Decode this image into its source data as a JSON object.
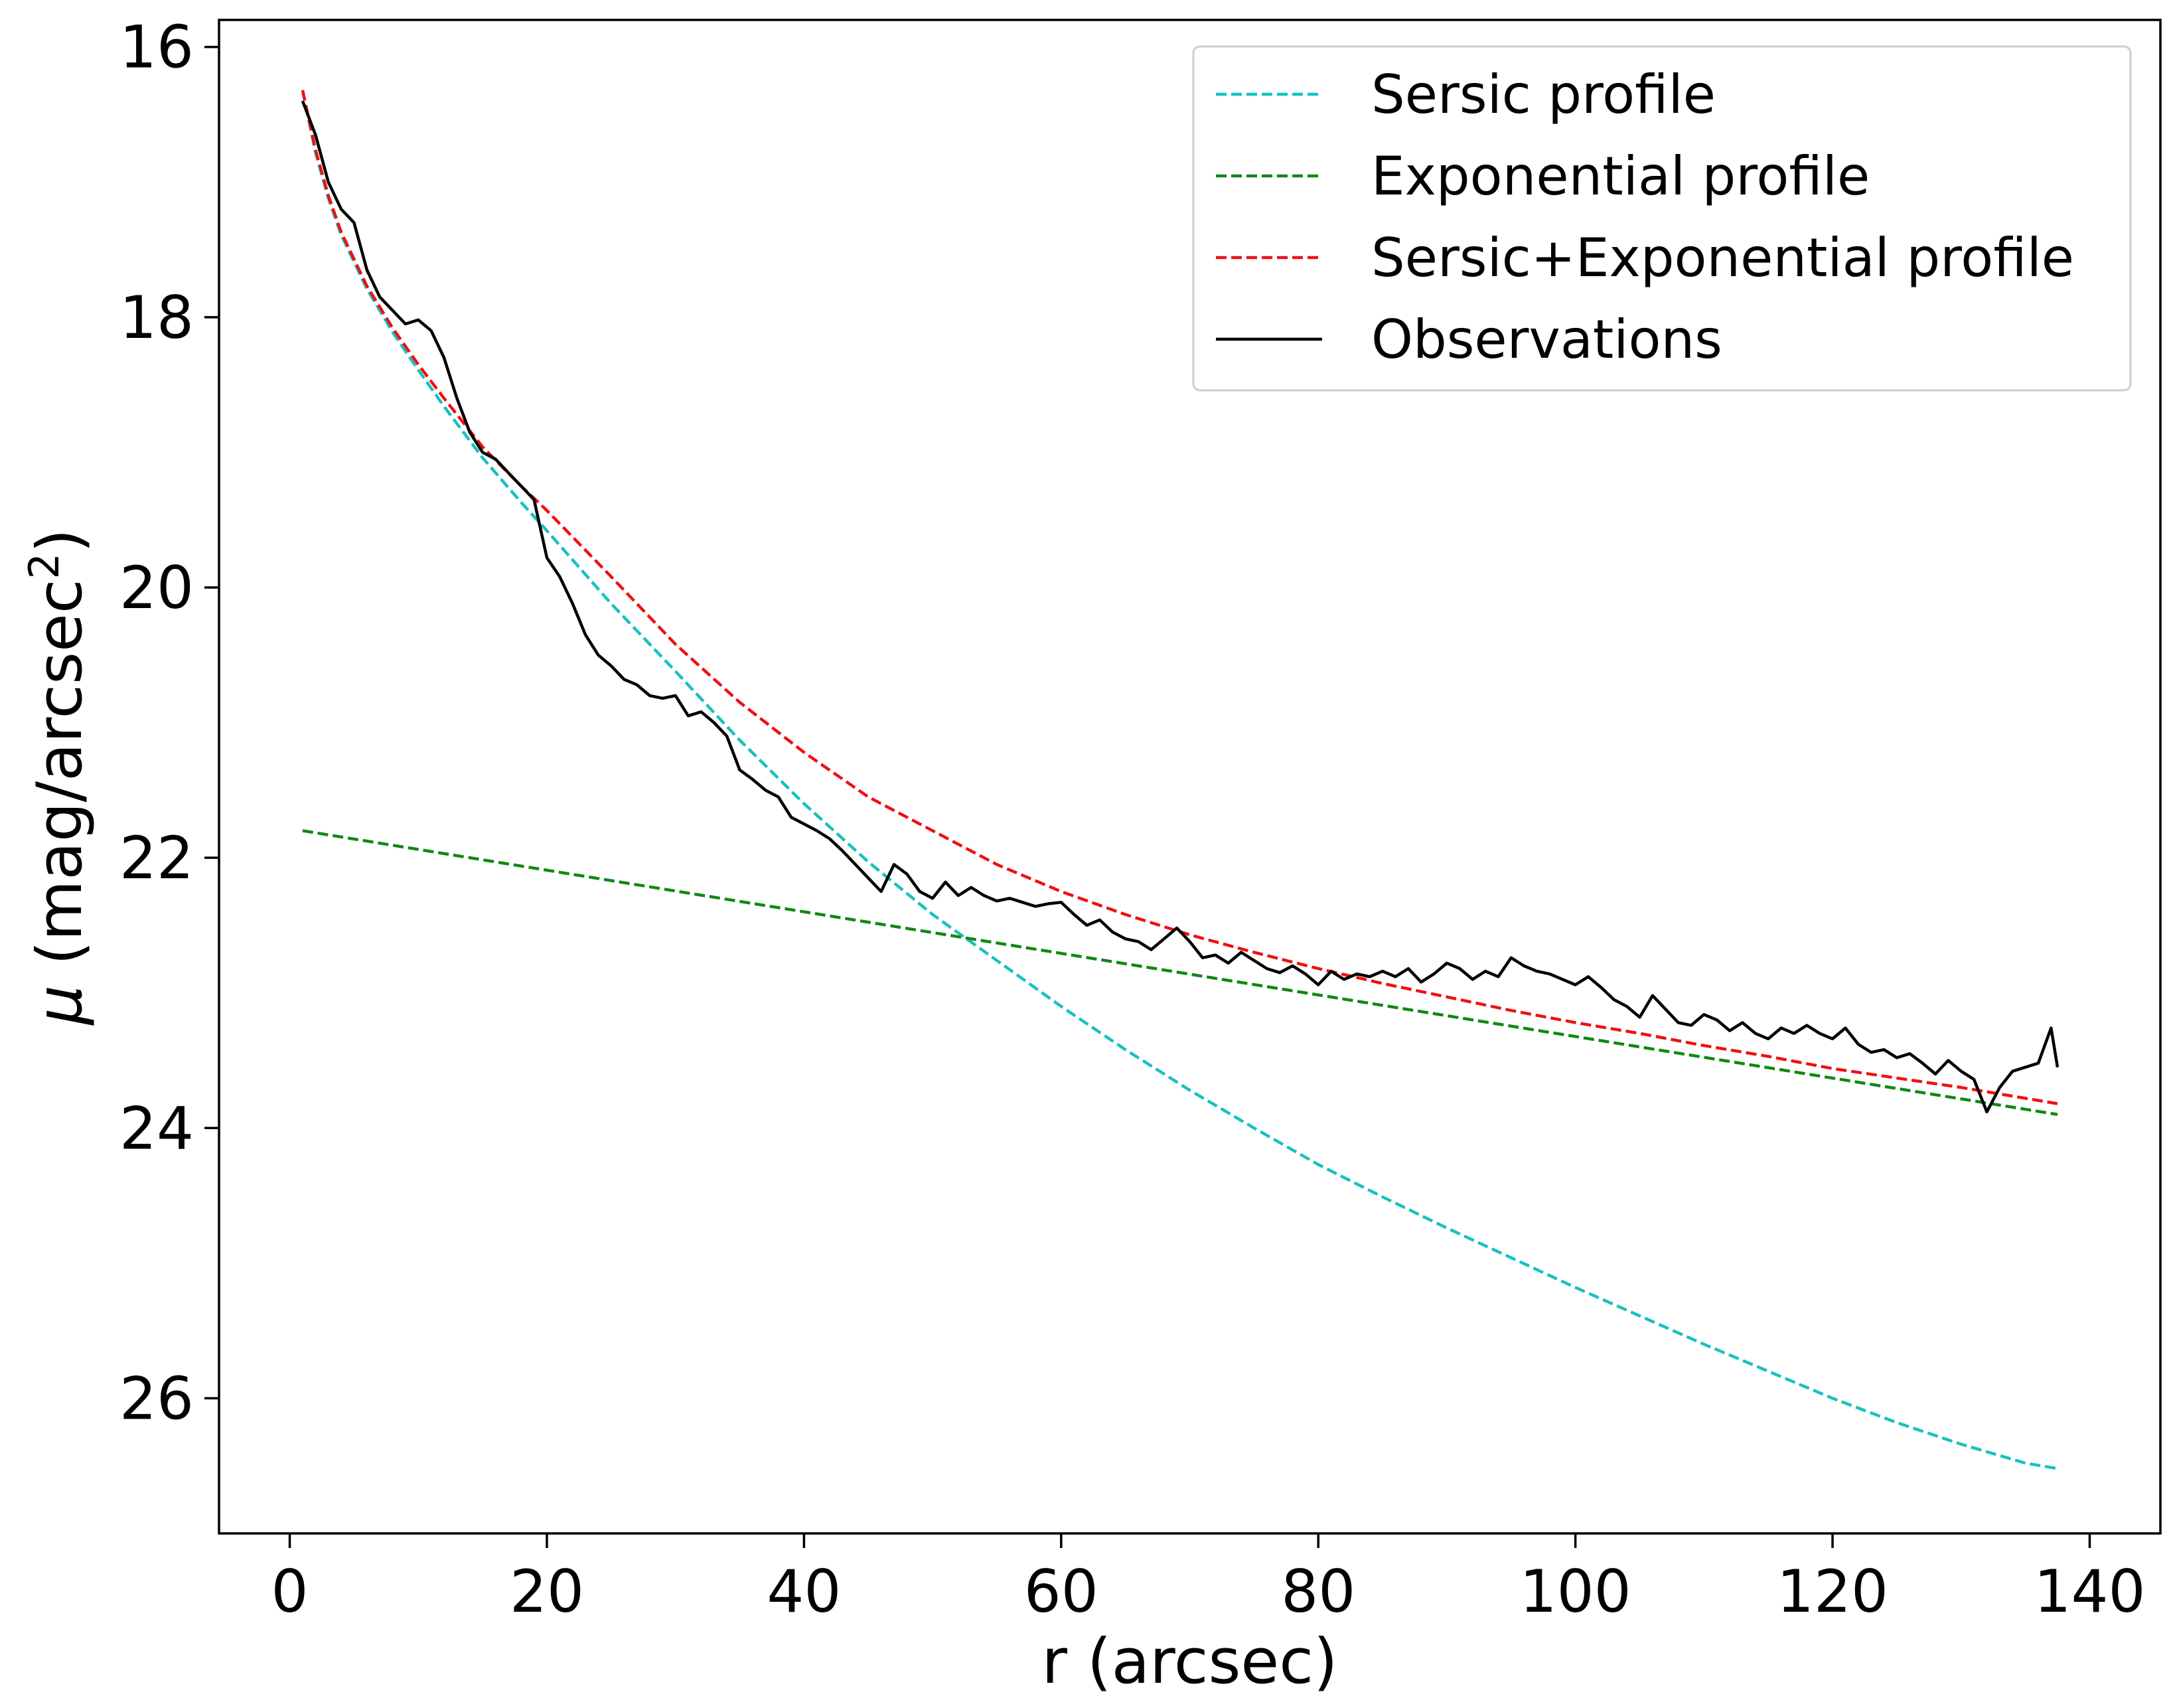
{
  "chart_data": {
    "type": "line",
    "title": "",
    "xlabel": "r (arcsec)",
    "ylabel": {
      "symbol": "μ",
      "text": " (mag/arcsec",
      "superscript": "2",
      "close": ")"
    },
    "xlim": [
      -5.5,
      145.5
    ],
    "ylim": [
      27.0,
      15.8
    ],
    "y_inverted": true,
    "xticks": [
      0,
      20,
      40,
      60,
      80,
      100,
      120,
      140
    ],
    "yticks": [
      16,
      18,
      20,
      22,
      24,
      26
    ],
    "xtick_labels": [
      "0",
      "20",
      "40",
      "60",
      "80",
      "100",
      "120",
      "140"
    ],
    "ytick_labels": [
      "16",
      "18",
      "20",
      "22",
      "24",
      "26"
    ],
    "grid": false,
    "legend_position": "top-right",
    "series": [
      {
        "name": "Sersic profile",
        "style": "dashed",
        "color": "#17c1c1",
        "x": [
          1,
          2,
          3,
          4,
          6,
          8,
          10,
          12,
          15,
          18,
          20,
          25,
          30,
          35,
          40,
          45,
          50,
          55,
          60,
          65,
          70,
          75,
          80,
          85,
          90,
          95,
          100,
          105,
          110,
          115,
          120,
          125,
          130,
          135,
          137.5
        ],
        "y": [
          16.32,
          16.78,
          17.12,
          17.39,
          17.79,
          18.11,
          18.39,
          18.66,
          19.04,
          19.37,
          19.58,
          20.12,
          20.62,
          21.13,
          21.6,
          22.03,
          22.42,
          22.76,
          23.1,
          23.42,
          23.72,
          24.0,
          24.27,
          24.51,
          24.74,
          24.96,
          25.18,
          25.39,
          25.6,
          25.8,
          26.0,
          26.18,
          26.34,
          26.48,
          26.52
        ]
      },
      {
        "name": "Exponential profile",
        "style": "dashed",
        "color": "#118811",
        "x": [
          1,
          137.5
        ],
        "y": [
          21.8,
          23.9
        ]
      },
      {
        "name": "Sersic+Exponential profile",
        "style": "dashed",
        "color": "#ee1111",
        "x": [
          1,
          2,
          3,
          4,
          6,
          8,
          10,
          12,
          15,
          18,
          20,
          25,
          30,
          35,
          40,
          45,
          50,
          55,
          60,
          65,
          70,
          75,
          80,
          85,
          90,
          95,
          100,
          105,
          110,
          115,
          120,
          125,
          130,
          135,
          137.5
        ],
        "y": [
          16.32,
          16.76,
          17.1,
          17.37,
          17.77,
          18.08,
          18.35,
          18.6,
          18.96,
          19.25,
          19.43,
          19.92,
          20.42,
          20.85,
          21.22,
          21.55,
          21.8,
          22.05,
          22.25,
          22.42,
          22.57,
          22.7,
          22.82,
          22.93,
          23.03,
          23.13,
          23.22,
          23.3,
          23.39,
          23.47,
          23.56,
          23.63,
          23.7,
          23.78,
          23.82
        ]
      },
      {
        "name": "Observations",
        "style": "solid",
        "color": "#000000",
        "x": [
          1,
          2,
          3,
          4,
          5,
          6,
          7,
          8,
          9,
          10,
          11,
          12,
          13,
          14,
          15,
          16,
          17,
          18,
          19,
          20,
          21,
          22,
          23,
          24,
          25,
          26,
          27,
          28,
          29,
          30,
          31,
          32,
          33,
          34,
          35,
          36,
          37,
          38,
          39,
          40,
          41,
          42,
          43,
          44,
          45,
          46,
          47,
          48,
          49,
          50,
          51,
          52,
          53,
          54,
          55,
          56,
          57,
          58,
          59,
          60,
          61,
          62,
          63,
          64,
          65,
          66,
          67,
          68,
          69,
          70,
          71,
          72,
          73,
          74,
          75,
          76,
          77,
          78,
          79,
          80,
          81,
          82,
          83,
          84,
          85,
          86,
          87,
          88,
          89,
          90,
          91,
          92,
          93,
          94,
          95,
          96,
          97,
          98,
          99,
          100,
          101,
          102,
          103,
          104,
          105,
          106,
          107,
          108,
          109,
          110,
          111,
          112,
          113,
          114,
          115,
          116,
          117,
          118,
          119,
          120,
          121,
          122,
          123,
          124,
          125,
          126,
          127,
          128,
          129,
          130,
          131,
          132,
          133,
          134,
          135,
          136,
          137,
          137.5
        ],
        "y": [
          16.4,
          16.65,
          17.0,
          17.2,
          17.3,
          17.65,
          17.85,
          17.95,
          18.05,
          18.02,
          18.1,
          18.3,
          18.6,
          18.85,
          19.0,
          19.05,
          19.15,
          19.25,
          19.35,
          19.78,
          19.92,
          20.12,
          20.35,
          20.5,
          20.58,
          20.68,
          20.72,
          20.8,
          20.82,
          20.8,
          20.95,
          20.92,
          21.0,
          21.1,
          21.35,
          21.42,
          21.5,
          21.55,
          21.7,
          21.75,
          21.8,
          21.86,
          21.95,
          22.05,
          22.15,
          22.25,
          22.05,
          22.12,
          22.25,
          22.3,
          22.18,
          22.28,
          22.22,
          22.28,
          22.32,
          22.3,
          22.33,
          22.36,
          22.34,
          22.33,
          22.42,
          22.5,
          22.46,
          22.55,
          22.6,
          22.62,
          22.68,
          22.6,
          22.52,
          22.62,
          22.74,
          22.72,
          22.78,
          22.7,
          22.76,
          22.82,
          22.85,
          22.8,
          22.86,
          22.94,
          22.84,
          22.9,
          22.86,
          22.88,
          22.84,
          22.88,
          22.82,
          22.92,
          22.86,
          22.78,
          22.82,
          22.9,
          22.84,
          22.88,
          22.74,
          22.8,
          22.84,
          22.86,
          22.9,
          22.94,
          22.88,
          22.96,
          23.05,
          23.1,
          23.18,
          23.02,
          23.12,
          23.22,
          23.24,
          23.16,
          23.2,
          23.28,
          23.22,
          23.3,
          23.34,
          23.26,
          23.3,
          23.24,
          23.3,
          23.34,
          23.26,
          23.38,
          23.44,
          23.42,
          23.48,
          23.45,
          23.52,
          23.6,
          23.5,
          23.58,
          23.64,
          23.88,
          23.7,
          23.58,
          23.55,
          23.52,
          23.26,
          23.55
        ]
      }
    ]
  }
}
